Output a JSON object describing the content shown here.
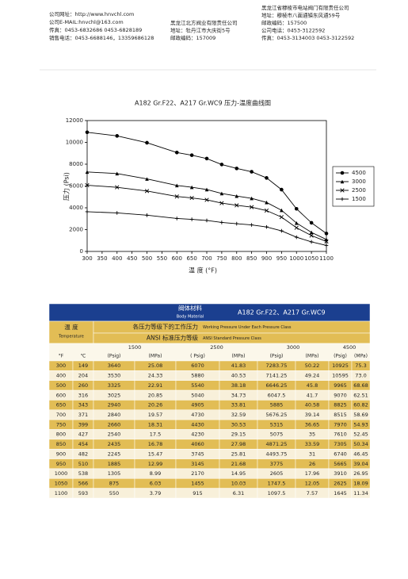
{
  "header": {
    "left": [
      "公司网址：http://www.hnvchl.com",
      "公司E-MAIL:hnvchl@163.com",
      "传真：0453-6832686    0453-6828189",
      "销售电话：0453-6688146，13359686128"
    ],
    "middle": [
      "黑龙江北方阀业有限责任公司",
      "地址：牡丹江市大庆街5号",
      "邮政编码：157009"
    ],
    "right": [
      "黑龙江省穆棱市电站阀门有限责任公司",
      "地址：穆棱市八面通镇东风通59号",
      "邮政编码：157500",
      "公司电话：0453-3122592",
      "传真：0453-3134003    0453-3122592"
    ]
  },
  "chart_data": {
    "type": "line",
    "title": "A182 Gr.F22、A217 Gr.WC9 压力-温度曲线图",
    "x_label": "温 度 (°F)",
    "y_label": "压力 (Psi)",
    "x": [
      300,
      400,
      500,
      600,
      650,
      700,
      750,
      800,
      850,
      900,
      950,
      1000,
      1050,
      1100
    ],
    "xlim": [
      300,
      1100
    ],
    "xticks": [
      300,
      350,
      400,
      450,
      500,
      550,
      600,
      650,
      700,
      750,
      800,
      850,
      900,
      950,
      1000,
      1050,
      1100
    ],
    "ylim": [
      0,
      12000
    ],
    "yticks": [
      0,
      2000,
      4000,
      6000,
      8000,
      10000,
      12000
    ],
    "grid": false,
    "legend": "right",
    "series": [
      {
        "name": "4500",
        "color": "#000000",
        "marker": "circle",
        "values": [
          10925,
          10595,
          9965,
          9070,
          8825,
          8515,
          7970,
          7610,
          7305,
          6740,
          5665,
          3910,
          2625,
          1645
        ]
      },
      {
        "name": "3000",
        "color": "#000000",
        "marker": "triangle",
        "values": [
          7283.75,
          7141.25,
          6646.25,
          6047.5,
          5885,
          5676.25,
          5315,
          5075,
          4871.25,
          4493.75,
          3775,
          2605,
          1747.5,
          1097.5
        ]
      },
      {
        "name": "2500",
        "color": "#000000",
        "marker": "cross",
        "values": [
          6070,
          5880,
          5540,
          5040,
          4905,
          4730,
          4430,
          4230,
          4060,
          3745,
          3145,
          2170,
          1455,
          915
        ]
      },
      {
        "name": "1500",
        "color": "#000000",
        "marker": "plus",
        "values": [
          3640,
          3530,
          3325,
          3025,
          2940,
          2840,
          2660,
          2540,
          2435,
          2245,
          1885,
          1305,
          875,
          550
        ]
      }
    ]
  },
  "table": {
    "material_label": "阀体材料",
    "material_label_en": "Body Material",
    "material": "A182 Gr.F22、A217 Gr.WC9",
    "temp_label": "温   度",
    "temp_label_en": "Temperature",
    "pressure_label": "各压力等级下的工作压力",
    "pressure_label_en": "Working Pressure Under Each Pressure Class",
    "class_label": "ANSI 标准压力等级",
    "class_label_en": "ANSI Standard Pressure Class",
    "classes": [
      "1500",
      "2500",
      "3000",
      "4500"
    ],
    "units": [
      "°F",
      "℃",
      "(Psig)",
      "(MPa)",
      "( Psig)",
      "(MPa)",
      "(Psig)",
      "(MPa)",
      "(Psig)",
      "(MPa)"
    ],
    "rows": [
      [
        "300",
        "149",
        "3640",
        "25.08",
        "6070",
        "41.83",
        "7283.75",
        "50.22",
        "10925",
        "75.3"
      ],
      [
        "400",
        "204",
        "3530",
        "24.33",
        "5880",
        "40.53",
        "7141.25",
        "49.24",
        "10595",
        "73.0"
      ],
      [
        "500",
        "260",
        "3325",
        "22.91",
        "5540",
        "38.18",
        "6646.25",
        "45.8",
        "9965",
        "68.68"
      ],
      [
        "600",
        "316",
        "3025",
        "20.85",
        "5040",
        "34.73",
        "6047.5",
        "41.7",
        "9070",
        "62.51"
      ],
      [
        "650",
        "343",
        "2940",
        "20.26",
        "4905",
        "33.81",
        "5885",
        "40.58",
        "8825",
        "60.82"
      ],
      [
        "700",
        "371",
        "2840",
        "19.57",
        "4730",
        "32.59",
        "5676.25",
        "39.14",
        "8515",
        "58.69"
      ],
      [
        "750",
        "399",
        "2660",
        "18.31",
        "4430",
        "30.53",
        "5315",
        "36.65",
        "7970",
        "54.93"
      ],
      [
        "800",
        "427",
        "2540",
        "17.5",
        "4230",
        "29.15",
        "5075",
        "35",
        "7610",
        "52.45"
      ],
      [
        "850",
        "454",
        "2435",
        "16.78",
        "4060",
        "27.98",
        "4871.25",
        "33.59",
        "7305",
        "50.34"
      ],
      [
        "900",
        "482",
        "2245",
        "15.47",
        "3745",
        "25.81",
        "4493.75",
        "31",
        "6740",
        "46.45"
      ],
      [
        "950",
        "510",
        "1885",
        "12.99",
        "3145",
        "21.68",
        "3775",
        "26",
        "5665",
        "39.04"
      ],
      [
        "1000",
        "538",
        "1305",
        "8.99",
        "2170",
        "14.95",
        "2605",
        "17.96",
        "3910",
        "26.95"
      ],
      [
        "1050",
        "566",
        "875",
        "6.03",
        "1455",
        "10.03",
        "1747.5",
        "12.05",
        "2625",
        "18.09"
      ],
      [
        "1100",
        "593",
        "550",
        "3.79",
        "915",
        "6.31",
        "1097.5",
        "7.57",
        "1645",
        "11.34"
      ]
    ]
  }
}
